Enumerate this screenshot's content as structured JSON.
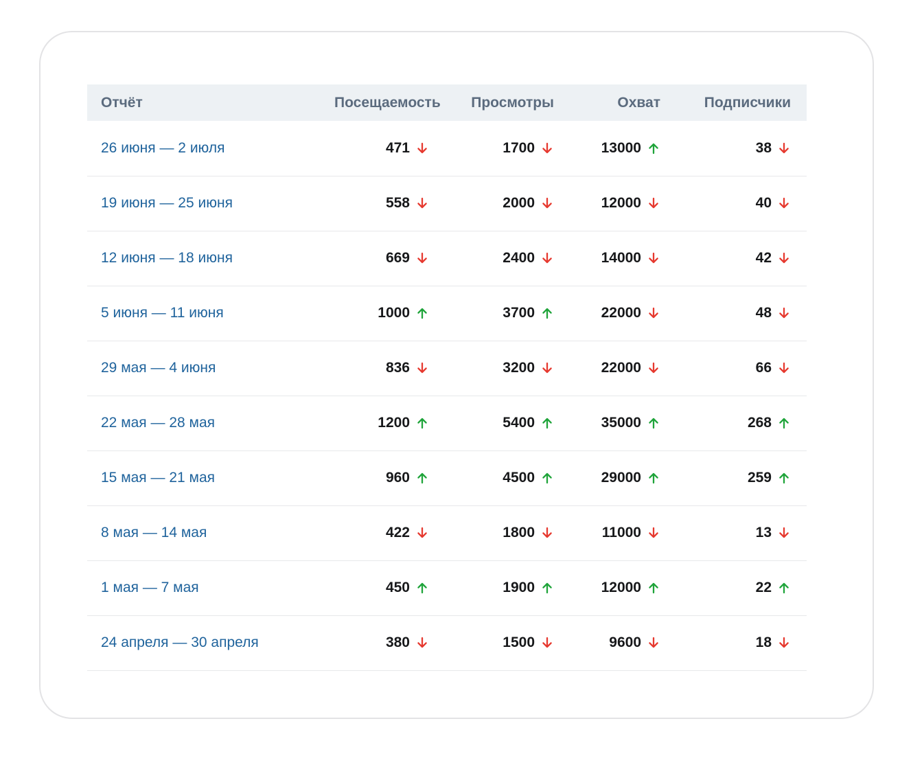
{
  "colors": {
    "up": "#1fa43a",
    "down": "#e6392f",
    "link": "#1f639c",
    "header_bg": "#edf1f4",
    "header_text": "#5b6b7e",
    "divider": "#e7e8ea",
    "value_text": "#17181a",
    "card_border": "#e3e3e5"
  },
  "icons": {
    "up": "arrow-up-icon",
    "down": "arrow-down-icon"
  },
  "table": {
    "columns": [
      {
        "key": "report",
        "label": "Отчёт",
        "align": "left"
      },
      {
        "key": "visits",
        "label": "Посещаемость",
        "align": "right"
      },
      {
        "key": "views",
        "label": "Просмотры",
        "align": "right"
      },
      {
        "key": "reach",
        "label": "Охват",
        "align": "right"
      },
      {
        "key": "subscribers",
        "label": "Подписчики",
        "align": "right"
      }
    ],
    "rows": [
      {
        "period": "26 июня — 2 июля",
        "visits": {
          "value": "471",
          "trend": "down"
        },
        "views": {
          "value": "1700",
          "trend": "down"
        },
        "reach": {
          "value": "13000",
          "trend": "up"
        },
        "subscribers": {
          "value": "38",
          "trend": "down"
        }
      },
      {
        "period": "19 июня — 25 июня",
        "visits": {
          "value": "558",
          "trend": "down"
        },
        "views": {
          "value": "2000",
          "trend": "down"
        },
        "reach": {
          "value": "12000",
          "trend": "down"
        },
        "subscribers": {
          "value": "40",
          "trend": "down"
        }
      },
      {
        "period": "12 июня — 18 июня",
        "visits": {
          "value": "669",
          "trend": "down"
        },
        "views": {
          "value": "2400",
          "trend": "down"
        },
        "reach": {
          "value": "14000",
          "trend": "down"
        },
        "subscribers": {
          "value": "42",
          "trend": "down"
        }
      },
      {
        "period": "5 июня — 11 июня",
        "visits": {
          "value": "1000",
          "trend": "up"
        },
        "views": {
          "value": "3700",
          "trend": "up"
        },
        "reach": {
          "value": "22000",
          "trend": "down"
        },
        "subscribers": {
          "value": "48",
          "trend": "down"
        }
      },
      {
        "period": "29 мая — 4 июня",
        "visits": {
          "value": "836",
          "trend": "down"
        },
        "views": {
          "value": "3200",
          "trend": "down"
        },
        "reach": {
          "value": "22000",
          "trend": "down"
        },
        "subscribers": {
          "value": "66",
          "trend": "down"
        }
      },
      {
        "period": "22 мая — 28 мая",
        "visits": {
          "value": "1200",
          "trend": "up"
        },
        "views": {
          "value": "5400",
          "trend": "up"
        },
        "reach": {
          "value": "35000",
          "trend": "up"
        },
        "subscribers": {
          "value": "268",
          "trend": "up"
        }
      },
      {
        "period": "15 мая — 21 мая",
        "visits": {
          "value": "960",
          "trend": "up"
        },
        "views": {
          "value": "4500",
          "trend": "up"
        },
        "reach": {
          "value": "29000",
          "trend": "up"
        },
        "subscribers": {
          "value": "259",
          "trend": "up"
        }
      },
      {
        "period": "8 мая — 14 мая",
        "visits": {
          "value": "422",
          "trend": "down"
        },
        "views": {
          "value": "1800",
          "trend": "down"
        },
        "reach": {
          "value": "11000",
          "trend": "down"
        },
        "subscribers": {
          "value": "13",
          "trend": "down"
        }
      },
      {
        "period": "1 мая — 7 мая",
        "visits": {
          "value": "450",
          "trend": "up"
        },
        "views": {
          "value": "1900",
          "trend": "up"
        },
        "reach": {
          "value": "12000",
          "trend": "up"
        },
        "subscribers": {
          "value": "22",
          "trend": "up"
        }
      },
      {
        "period": "24 апреля — 30 апреля",
        "visits": {
          "value": "380",
          "trend": "down"
        },
        "views": {
          "value": "1500",
          "trend": "down"
        },
        "reach": {
          "value": "9600",
          "trend": "down"
        },
        "subscribers": {
          "value": "18",
          "trend": "down"
        }
      }
    ]
  }
}
